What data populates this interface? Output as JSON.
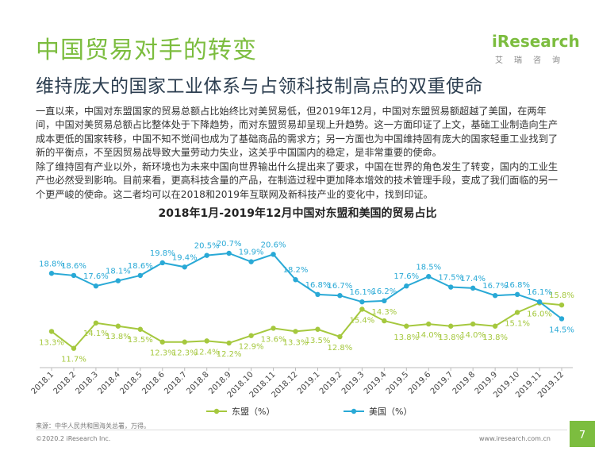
{
  "header": {
    "title": "中国贸易对手的转变",
    "subtitle": "维持庞大的国家工业体系与占领科技制高点的双重使命",
    "logo_text": "iResearch",
    "logo_sub": "艾瑞咨询"
  },
  "body": {
    "paragraph1": "一直以来，中国对东盟国家的贸易总额占比始终比对美贸易低，但2019年12月，中国对东盟贸易额超越了美国，在两年间，中国对美贸易总额占比整体处于下降趋势，而对东盟贸易却呈现上升趋势。这一方面印证了上文，基础工业制造向生产成本更低的国家转移，中国不知不觉间也成为了基础商品的需求方；另一方面也为中国维持固有庞大的国家轻重工业找到了新的平衡点，不至因贸易战导致大量劳动力失业，这关乎中国国内的稳定，是非常重要的使命。",
    "paragraph2": "除了维持固有产业以外，新环境也为未来中国向世界输出什么提出来了要求，中国在世界的角色发生了转变，国内的工业生产也必然受到影响。目前来看，更高科技含量的产品，在制造过程中更加降本增效的技术管理手段，变成了我们面临的另一个更严峻的使命。这二者均可以在2018和2019年互联网及新科技产业的变化中，找到印证。"
  },
  "chart_data": {
    "type": "line",
    "title": "2018年1月-2019年12月中国对东盟和美国的贸易占比",
    "categories": [
      "2018.1",
      "2018.2",
      "2018.3",
      "2018.4",
      "2018.5",
      "2018.6",
      "2018.7",
      "2018.8",
      "2018.9",
      "2018.10",
      "2018.11",
      "2018.12",
      "2019.1",
      "2019.2",
      "2019.3",
      "2019.4",
      "2019.5",
      "2019.6",
      "2019.7",
      "2019.8",
      "2019.9",
      "2019.10",
      "2019.11",
      "2019.12"
    ],
    "series": [
      {
        "name": "东盟（%）",
        "color": "#a5c83e",
        "values": [
          13.3,
          11.7,
          14.1,
          13.8,
          13.5,
          12.3,
          12.3,
          12.4,
          12.2,
          12.9,
          13.6,
          13.3,
          13.5,
          12.8,
          15.4,
          14.3,
          13.8,
          14.0,
          13.8,
          14.0,
          13.8,
          15.1,
          16.0,
          15.8
        ]
      },
      {
        "name": "美国（%）",
        "color": "#29a9d6",
        "values": [
          18.8,
          18.6,
          17.6,
          18.1,
          18.6,
          19.8,
          19.4,
          20.5,
          20.7,
          19.9,
          20.6,
          18.2,
          16.8,
          16.7,
          16.1,
          16.2,
          17.6,
          18.5,
          17.5,
          17.4,
          16.7,
          16.8,
          16.1,
          14.5
        ]
      }
    ],
    "legend_position": "bottom",
    "grid": false
  },
  "footer": {
    "source": "来源：中华人民共和国海关总署，万得。",
    "copyright": "©2020.2 iResearch Inc.",
    "url": "www.iresearch.com.cn",
    "page": "7"
  }
}
